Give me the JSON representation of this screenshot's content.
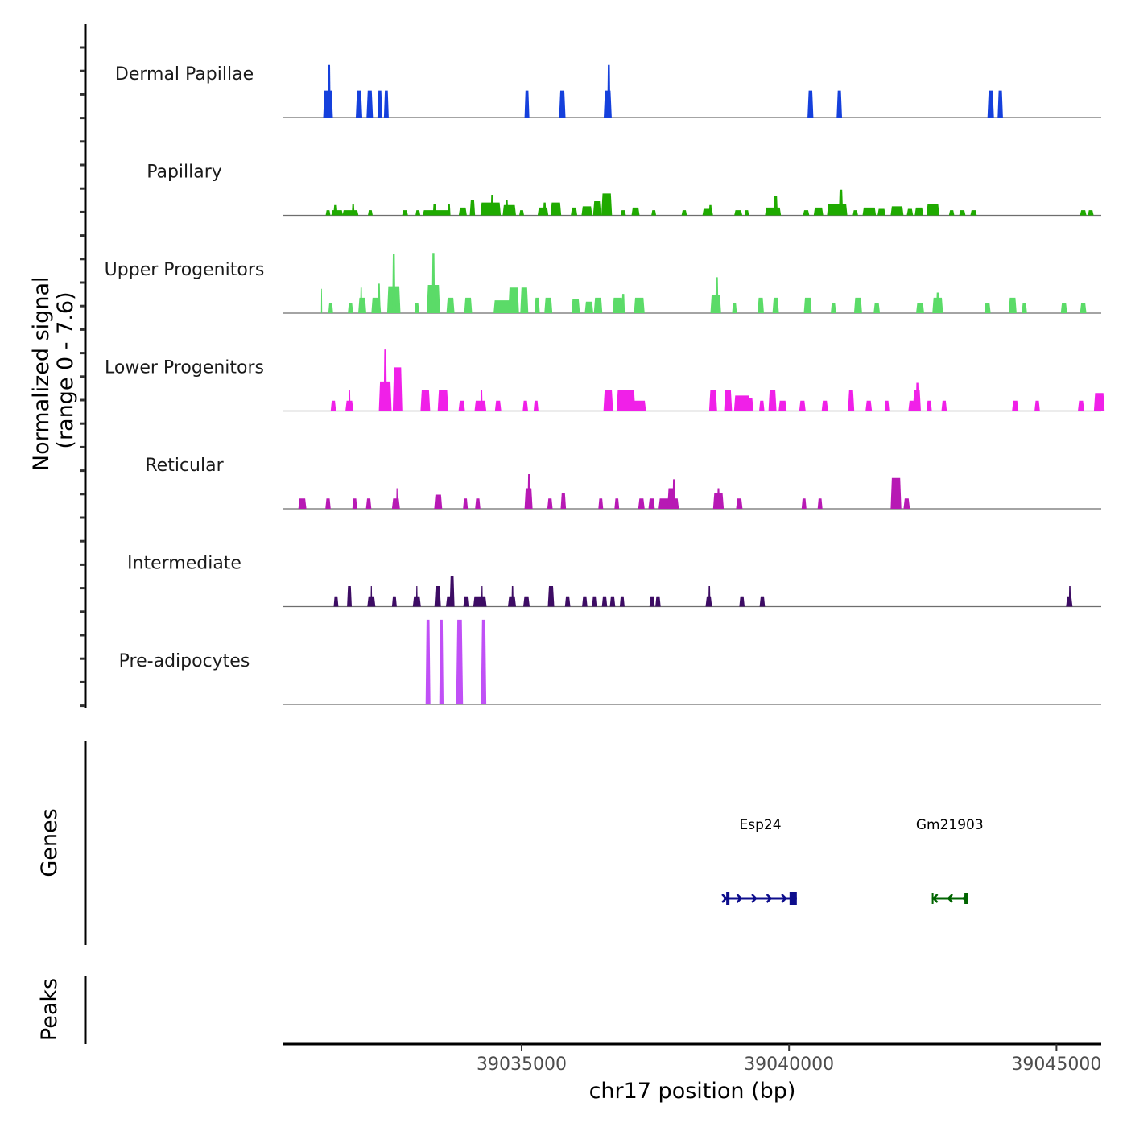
{
  "chart_data": {
    "type": "area",
    "title": "",
    "xlabel": "chr17 position (bp)",
    "ylabel": "Normalized signal\n(range 0 - 7.6)",
    "ylabel_lines": [
      "Normalized signal",
      "(range 0 - 7.6)"
    ],
    "ylim": [
      0,
      7.6
    ],
    "xlim": [
      39030545,
      39045837
    ],
    "x_ticks": [
      39035000,
      39040000,
      39045000
    ],
    "x_tick_labels": [
      "39035000",
      "39040000",
      "39045000"
    ],
    "grid": false,
    "legend": "none",
    "peak_format": "[center_bp, width_bp, value]",
    "series": [
      {
        "name": "Dermal Papillae",
        "color": "#1540dc",
        "peaks": [
          [
            39031380,
            180,
            2.1
          ],
          [
            39031400,
            60,
            4.1
          ],
          [
            39031960,
            120,
            2.1
          ],
          [
            39032160,
            120,
            2.1
          ],
          [
            39032350,
            90,
            2.1
          ],
          [
            39032470,
            90,
            2.1
          ],
          [
            39035100,
            90,
            2.1
          ],
          [
            39035760,
            120,
            2.1
          ],
          [
            39036610,
            150,
            2.1
          ],
          [
            39036630,
            60,
            4.1
          ],
          [
            39040400,
            110,
            2.1
          ],
          [
            39040940,
            100,
            2.1
          ],
          [
            39043770,
            120,
            2.1
          ],
          [
            39043950,
            100,
            2.1
          ]
        ]
      },
      {
        "name": "Papillary",
        "color": "#1faa00",
        "peaks": [
          [
            39031380,
            90,
            0.4
          ],
          [
            39031550,
            220,
            0.4
          ],
          [
            39031520,
            80,
            0.8
          ],
          [
            39031800,
            300,
            0.4
          ],
          [
            39031850,
            50,
            0.9
          ],
          [
            39032170,
            90,
            0.4
          ],
          [
            39032820,
            110,
            0.4
          ],
          [
            39033060,
            90,
            0.4
          ],
          [
            39033400,
            500,
            0.4
          ],
          [
            39033370,
            60,
            0.9
          ],
          [
            39033640,
            60,
            0.9
          ],
          [
            39033900,
            150,
            0.6
          ],
          [
            39034080,
            100,
            1.2
          ],
          [
            39034420,
            380,
            1.0
          ],
          [
            39034450,
            60,
            1.6
          ],
          [
            39034770,
            250,
            0.8
          ],
          [
            39034720,
            60,
            1.2
          ],
          [
            39035000,
            90,
            0.4
          ],
          [
            39035400,
            200,
            0.6
          ],
          [
            39035430,
            60,
            1.0
          ],
          [
            39035640,
            200,
            1.0
          ],
          [
            39035980,
            120,
            0.6
          ],
          [
            39036220,
            200,
            0.7
          ],
          [
            39036410,
            150,
            1.1
          ],
          [
            39036590,
            200,
            1.7
          ],
          [
            39036900,
            100,
            0.4
          ],
          [
            39037130,
            150,
            0.6
          ],
          [
            39037470,
            90,
            0.4
          ],
          [
            39038040,
            100,
            0.4
          ],
          [
            39038480,
            200,
            0.5
          ],
          [
            39038530,
            60,
            0.8
          ],
          [
            39039050,
            150,
            0.4
          ],
          [
            39039210,
            80,
            0.4
          ],
          [
            39039700,
            300,
            0.6
          ],
          [
            39039750,
            80,
            1.5
          ],
          [
            39040320,
            120,
            0.4
          ],
          [
            39040550,
            180,
            0.6
          ],
          [
            39040900,
            380,
            0.9
          ],
          [
            39040970,
            80,
            2.0
          ],
          [
            39041240,
            100,
            0.4
          ],
          [
            39041500,
            250,
            0.6
          ],
          [
            39041730,
            150,
            0.5
          ],
          [
            39042020,
            240,
            0.7
          ],
          [
            39042260,
            120,
            0.5
          ],
          [
            39042430,
            160,
            0.6
          ],
          [
            39042690,
            240,
            0.9
          ],
          [
            39043040,
            100,
            0.4
          ],
          [
            39043240,
            120,
            0.4
          ],
          [
            39043450,
            120,
            0.4
          ],
          [
            39045500,
            120,
            0.4
          ],
          [
            39045640,
            110,
            0.4
          ]
        ]
      },
      {
        "name": "Upper Progenitors",
        "color": "#5bdb68",
        "peaks": [
          [
            39031260,
            20,
            1.9
          ],
          [
            39031430,
            90,
            0.8
          ],
          [
            39031800,
            100,
            0.8
          ],
          [
            39032020,
            150,
            1.2
          ],
          [
            39032000,
            40,
            2.0
          ],
          [
            39032280,
            180,
            1.2
          ],
          [
            39032330,
            60,
            2.3
          ],
          [
            39032610,
            250,
            2.1
          ],
          [
            39032610,
            60,
            4.6
          ],
          [
            39033040,
            90,
            0.8
          ],
          [
            39033350,
            250,
            2.2
          ],
          [
            39033350,
            60,
            4.7
          ],
          [
            39033670,
            150,
            1.2
          ],
          [
            39034000,
            150,
            1.2
          ],
          [
            39034700,
            450,
            1.0
          ],
          [
            39034850,
            200,
            2.0
          ],
          [
            39035050,
            150,
            2.0
          ],
          [
            39035290,
            100,
            1.2
          ],
          [
            39035500,
            150,
            1.2
          ],
          [
            39036010,
            160,
            1.1
          ],
          [
            39036260,
            160,
            0.9
          ],
          [
            39036430,
            160,
            1.2
          ],
          [
            39036800,
            200,
            1.2
          ],
          [
            39036900,
            60,
            1.5
          ],
          [
            39037200,
            200,
            1.2
          ],
          [
            39038630,
            200,
            1.4
          ],
          [
            39038650,
            60,
            2.8
          ],
          [
            39038980,
            90,
            0.8
          ],
          [
            39039470,
            120,
            1.2
          ],
          [
            39039750,
            120,
            1.2
          ],
          [
            39040350,
            150,
            1.2
          ],
          [
            39040830,
            100,
            0.8
          ],
          [
            39041290,
            150,
            1.2
          ],
          [
            39041640,
            120,
            0.8
          ],
          [
            39042450,
            150,
            0.8
          ],
          [
            39042780,
            200,
            1.2
          ],
          [
            39042780,
            60,
            1.6
          ],
          [
            39043710,
            120,
            0.8
          ],
          [
            39044180,
            150,
            1.2
          ],
          [
            39044400,
            100,
            0.8
          ],
          [
            39045140,
            120,
            0.8
          ],
          [
            39045500,
            120,
            0.8
          ]
        ]
      },
      {
        "name": "Lower Progenitors",
        "color": "#f020e8",
        "peaks": [
          [
            39031480,
            100,
            0.8
          ],
          [
            39031780,
            150,
            0.8
          ],
          [
            39031780,
            40,
            1.6
          ],
          [
            39032450,
            240,
            2.3
          ],
          [
            39032450,
            60,
            4.8
          ],
          [
            39032680,
            180,
            3.4
          ],
          [
            39033200,
            180,
            1.6
          ],
          [
            39033530,
            200,
            1.6
          ],
          [
            39033880,
            120,
            0.8
          ],
          [
            39034230,
            220,
            0.8
          ],
          [
            39034250,
            40,
            1.6
          ],
          [
            39034560,
            120,
            0.8
          ],
          [
            39035070,
            100,
            0.8
          ],
          [
            39035270,
            90,
            0.8
          ],
          [
            39036620,
            180,
            1.6
          ],
          [
            39036950,
            350,
            1.6
          ],
          [
            39037200,
            250,
            0.8
          ],
          [
            39038580,
            150,
            1.6
          ],
          [
            39038860,
            150,
            1.6
          ],
          [
            39039120,
            300,
            1.2
          ],
          [
            39039260,
            150,
            1.0
          ],
          [
            39039490,
            100,
            0.8
          ],
          [
            39039690,
            150,
            1.6
          ],
          [
            39039880,
            150,
            0.8
          ],
          [
            39040250,
            120,
            0.8
          ],
          [
            39040670,
            120,
            0.8
          ],
          [
            39041160,
            120,
            1.6
          ],
          [
            39041490,
            120,
            0.8
          ],
          [
            39041830,
            90,
            0.8
          ],
          [
            39042290,
            120,
            0.8
          ],
          [
            39042390,
            150,
            1.6
          ],
          [
            39042400,
            60,
            2.2
          ],
          [
            39042620,
            100,
            0.8
          ],
          [
            39042900,
            100,
            0.8
          ],
          [
            39044230,
            120,
            0.8
          ],
          [
            39044640,
            100,
            0.8
          ],
          [
            39045460,
            120,
            0.8
          ],
          [
            39045800,
            200,
            1.4
          ]
        ]
      },
      {
        "name": "Reticular",
        "color": "#b719b4",
        "peaks": [
          [
            39030900,
            150,
            0.8
          ],
          [
            39031380,
            100,
            0.8
          ],
          [
            39031880,
            90,
            0.8
          ],
          [
            39032140,
            100,
            0.8
          ],
          [
            39032650,
            150,
            0.8
          ],
          [
            39032670,
            30,
            1.6
          ],
          [
            39033440,
            150,
            1.1
          ],
          [
            39033950,
            90,
            0.8
          ],
          [
            39034180,
            100,
            0.8
          ],
          [
            39035130,
            150,
            1.6
          ],
          [
            39035140,
            60,
            2.7
          ],
          [
            39035530,
            100,
            0.8
          ],
          [
            39035780,
            100,
            1.2
          ],
          [
            39036480,
            90,
            0.8
          ],
          [
            39036780,
            90,
            0.8
          ],
          [
            39037240,
            120,
            0.8
          ],
          [
            39037430,
            120,
            0.8
          ],
          [
            39037750,
            380,
            0.8
          ],
          [
            39037800,
            150,
            1.6
          ],
          [
            39037850,
            60,
            2.3
          ],
          [
            39038680,
            200,
            1.2
          ],
          [
            39038680,
            50,
            1.6
          ],
          [
            39039070,
            120,
            0.8
          ],
          [
            39040280,
            90,
            0.8
          ],
          [
            39040580,
            90,
            0.8
          ],
          [
            39042000,
            200,
            2.4
          ],
          [
            39042200,
            120,
            0.8
          ]
        ]
      },
      {
        "name": "Intermediate",
        "color": "#3d0c64",
        "peaks": [
          [
            39031530,
            90,
            0.8
          ],
          [
            39031780,
            90,
            1.6
          ],
          [
            39032190,
            150,
            0.8
          ],
          [
            39032190,
            30,
            1.6
          ],
          [
            39032620,
            90,
            0.8
          ],
          [
            39033040,
            150,
            0.8
          ],
          [
            39033040,
            30,
            1.6
          ],
          [
            39033430,
            120,
            1.6
          ],
          [
            39033660,
            150,
            0.8
          ],
          [
            39033700,
            90,
            2.4
          ],
          [
            39033960,
            100,
            0.8
          ],
          [
            39034220,
            250,
            0.8
          ],
          [
            39034260,
            30,
            1.6
          ],
          [
            39034820,
            150,
            0.8
          ],
          [
            39034830,
            40,
            1.6
          ],
          [
            39035090,
            120,
            0.8
          ],
          [
            39035550,
            120,
            1.6
          ],
          [
            39035860,
            100,
            0.8
          ],
          [
            39036180,
            100,
            0.8
          ],
          [
            39036360,
            90,
            0.8
          ],
          [
            39036550,
            100,
            0.8
          ],
          [
            39036700,
            100,
            0.8
          ],
          [
            39036880,
            90,
            0.8
          ],
          [
            39037440,
            100,
            0.8
          ],
          [
            39037550,
            100,
            0.8
          ],
          [
            39038500,
            120,
            0.8
          ],
          [
            39038510,
            40,
            1.6
          ],
          [
            39039120,
            100,
            0.8
          ],
          [
            39039500,
            100,
            0.8
          ],
          [
            39045240,
            120,
            0.8
          ],
          [
            39045250,
            40,
            1.6
          ]
        ]
      },
      {
        "name": "Pre-adipocytes",
        "color": "#c050f6",
        "peaks": [
          [
            39033250,
            90,
            6.6
          ],
          [
            39033500,
            80,
            6.6
          ],
          [
            39033840,
            130,
            6.6
          ],
          [
            39034290,
            100,
            6.6
          ]
        ]
      }
    ],
    "genes_track": {
      "label": "Genes",
      "genes": [
        {
          "name": "Esp24",
          "start": 39038780,
          "end": 39040145,
          "strand": "+",
          "color": "#0d0d8c"
        },
        {
          "name": "Gm21903",
          "start": 39042670,
          "end": 39043340,
          "strand": "-",
          "color": "#006400"
        }
      ]
    },
    "peaks_track": {
      "label": "Peaks",
      "regions": []
    }
  }
}
